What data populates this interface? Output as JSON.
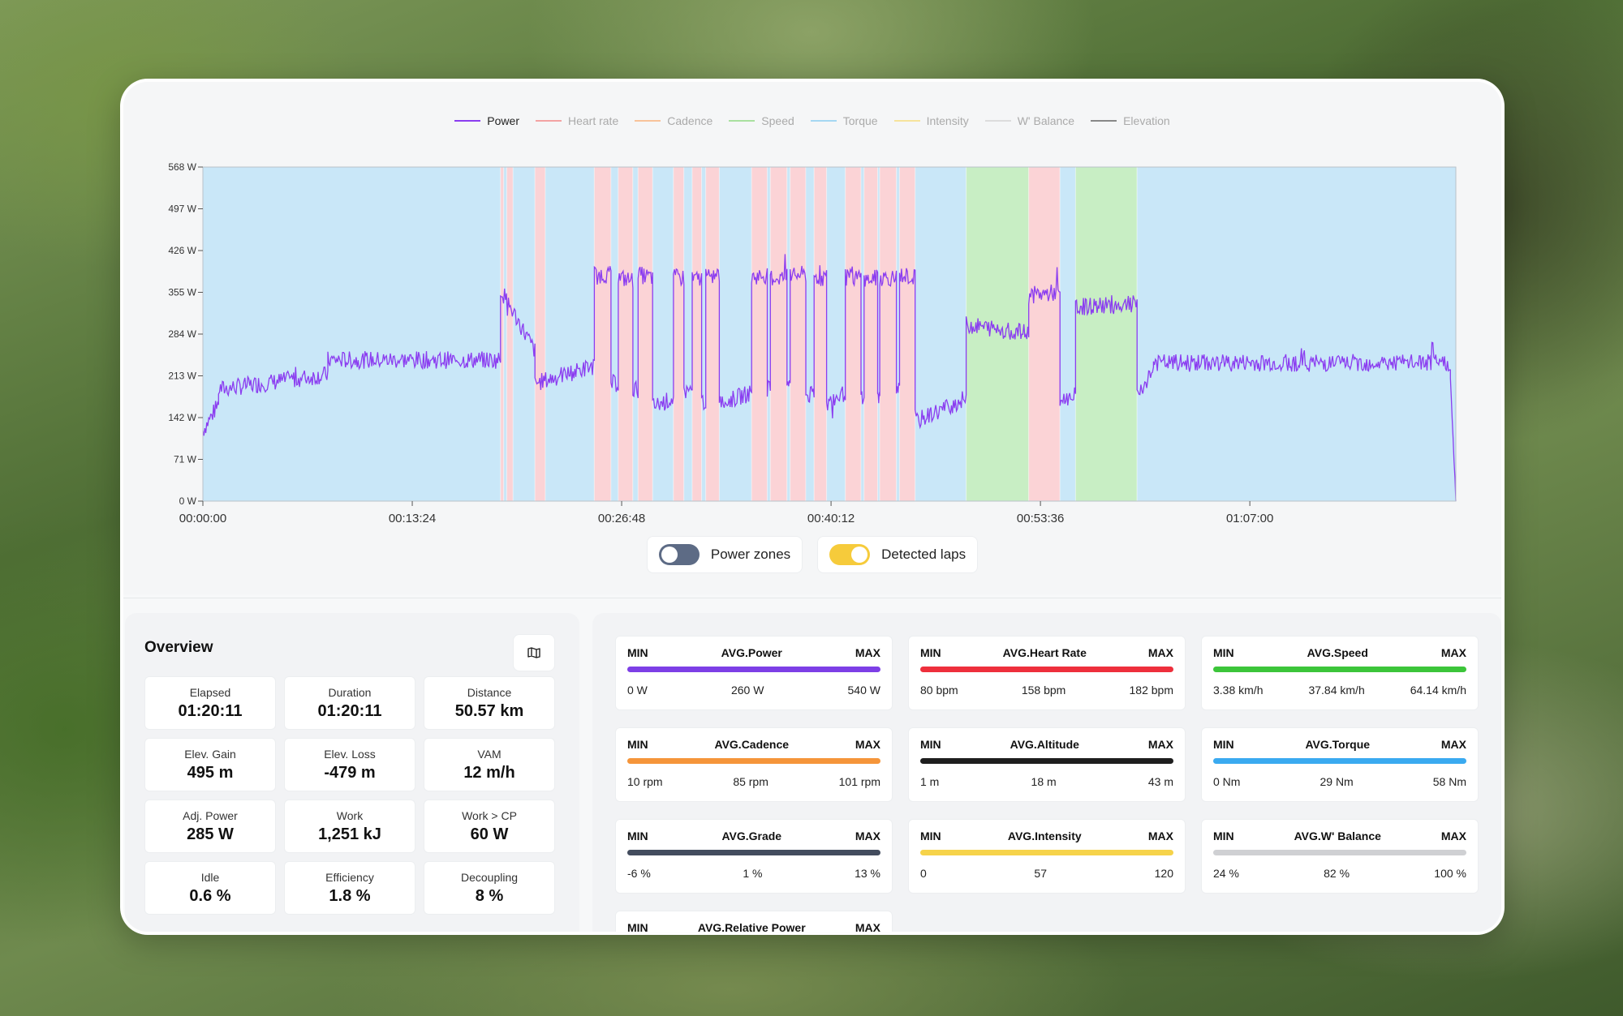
{
  "legend": [
    {
      "label": "Power",
      "color": "#8b3df0",
      "active": true
    },
    {
      "label": "Heart rate",
      "color": "#f3a3a3",
      "active": false
    },
    {
      "label": "Cadence",
      "color": "#f8c39a",
      "active": false
    },
    {
      "label": "Speed",
      "color": "#a9e09f",
      "active": false
    },
    {
      "label": "Torque",
      "color": "#a5d7f2",
      "active": false
    },
    {
      "label": "Intensity",
      "color": "#f6e39c",
      "active": false
    },
    {
      "label": "W' Balance",
      "color": "#dcdcdc",
      "active": false
    },
    {
      "label": "Elevation",
      "color": "#888888",
      "active": false
    }
  ],
  "chart_data": {
    "type": "line",
    "series": [
      {
        "name": "Power",
        "color": "#8b3df0"
      }
    ],
    "y_ticks": [
      "568 W",
      "497 W",
      "426 W",
      "355 W",
      "284 W",
      "213 W",
      "142 W",
      "71 W",
      "0 W"
    ],
    "x_ticks": [
      "00:00:00",
      "00:13:24",
      "00:26:48",
      "00:40:12",
      "00:53:36",
      "01:07:00"
    ],
    "ylim": [
      0,
      568
    ],
    "xlim_seconds": [
      0,
      4811
    ],
    "zones_legend": {
      "blue": "#c9e7f8",
      "pink": "#fbd3d6",
      "green": "#c8eec4"
    },
    "zones": [
      {
        "from": 0,
        "to": 1143,
        "color": "blue"
      },
      {
        "from": 1143,
        "to": 1155,
        "color": "pink"
      },
      {
        "from": 1155,
        "to": 1167,
        "color": "blue"
      },
      {
        "from": 1167,
        "to": 1191,
        "color": "pink"
      },
      {
        "from": 1191,
        "to": 1275,
        "color": "blue"
      },
      {
        "from": 1275,
        "to": 1315,
        "color": "pink"
      },
      {
        "from": 1315,
        "to": 1503,
        "color": "blue"
      },
      {
        "from": 1503,
        "to": 1567,
        "color": "pink"
      },
      {
        "from": 1567,
        "to": 1595,
        "color": "blue"
      },
      {
        "from": 1595,
        "to": 1651,
        "color": "pink"
      },
      {
        "from": 1651,
        "to": 1671,
        "color": "blue"
      },
      {
        "from": 1671,
        "to": 1727,
        "color": "pink"
      },
      {
        "from": 1727,
        "to": 1807,
        "color": "blue"
      },
      {
        "from": 1807,
        "to": 1847,
        "color": "pink"
      },
      {
        "from": 1847,
        "to": 1879,
        "color": "blue"
      },
      {
        "from": 1879,
        "to": 1915,
        "color": "pink"
      },
      {
        "from": 1915,
        "to": 1931,
        "color": "blue"
      },
      {
        "from": 1931,
        "to": 1983,
        "color": "pink"
      },
      {
        "from": 1983,
        "to": 2107,
        "color": "blue"
      },
      {
        "from": 2107,
        "to": 2167,
        "color": "pink"
      },
      {
        "from": 2167,
        "to": 2179,
        "color": "blue"
      },
      {
        "from": 2179,
        "to": 2243,
        "color": "pink"
      },
      {
        "from": 2243,
        "to": 2255,
        "color": "blue"
      },
      {
        "from": 2255,
        "to": 2315,
        "color": "pink"
      },
      {
        "from": 2315,
        "to": 2347,
        "color": "blue"
      },
      {
        "from": 2347,
        "to": 2395,
        "color": "pink"
      },
      {
        "from": 2395,
        "to": 2467,
        "color": "blue"
      },
      {
        "from": 2467,
        "to": 2527,
        "color": "pink"
      },
      {
        "from": 2527,
        "to": 2539,
        "color": "blue"
      },
      {
        "from": 2539,
        "to": 2591,
        "color": "pink"
      },
      {
        "from": 2591,
        "to": 2599,
        "color": "blue"
      },
      {
        "from": 2599,
        "to": 2663,
        "color": "pink"
      },
      {
        "from": 2663,
        "to": 2675,
        "color": "blue"
      },
      {
        "from": 2675,
        "to": 2735,
        "color": "pink"
      },
      {
        "from": 2735,
        "to": 2931,
        "color": "blue"
      },
      {
        "from": 2931,
        "to": 3171,
        "color": "green"
      },
      {
        "from": 3171,
        "to": 3291,
        "color": "pink"
      },
      {
        "from": 3291,
        "to": 3351,
        "color": "blue"
      },
      {
        "from": 3351,
        "to": 3587,
        "color": "green"
      },
      {
        "from": 3587,
        "to": 4811,
        "color": "blue"
      }
    ],
    "power_segments": [
      {
        "from": 0,
        "to": 60,
        "start": 120,
        "end": 165
      },
      {
        "from": 60,
        "to": 480,
        "start": 190,
        "end": 215
      },
      {
        "from": 480,
        "to": 1143,
        "start": 240,
        "end": 240
      },
      {
        "from": 1143,
        "to": 1275,
        "start": 360,
        "end": 255
      },
      {
        "from": 1275,
        "to": 1503,
        "start": 200,
        "end": 230
      },
      {
        "from": 1503,
        "to": 1567,
        "start": 385,
        "end": 385
      },
      {
        "from": 1567,
        "to": 1595,
        "start": 200,
        "end": 200
      },
      {
        "from": 1595,
        "to": 1651,
        "start": 380,
        "end": 375
      },
      {
        "from": 1651,
        "to": 1671,
        "start": 190,
        "end": 190
      },
      {
        "from": 1671,
        "to": 1727,
        "start": 385,
        "end": 380
      },
      {
        "from": 1727,
        "to": 1807,
        "start": 160,
        "end": 175
      },
      {
        "from": 1807,
        "to": 1847,
        "start": 380,
        "end": 380
      },
      {
        "from": 1847,
        "to": 1879,
        "start": 185,
        "end": 190
      },
      {
        "from": 1879,
        "to": 1915,
        "start": 375,
        "end": 380
      },
      {
        "from": 1915,
        "to": 1931,
        "start": 170,
        "end": 170
      },
      {
        "from": 1931,
        "to": 1983,
        "start": 380,
        "end": 385
      },
      {
        "from": 1983,
        "to": 2107,
        "start": 165,
        "end": 185
      },
      {
        "from": 2107,
        "to": 2167,
        "start": 380,
        "end": 385
      },
      {
        "from": 2167,
        "to": 2179,
        "start": 190,
        "end": 190
      },
      {
        "from": 2179,
        "to": 2243,
        "start": 380,
        "end": 380
      },
      {
        "from": 2243,
        "to": 2255,
        "start": 200,
        "end": 200
      },
      {
        "from": 2255,
        "to": 2315,
        "start": 385,
        "end": 385
      },
      {
        "from": 2315,
        "to": 2347,
        "start": 180,
        "end": 180
      },
      {
        "from": 2347,
        "to": 2395,
        "start": 380,
        "end": 380
      },
      {
        "from": 2395,
        "to": 2467,
        "start": 165,
        "end": 185
      },
      {
        "from": 2467,
        "to": 2527,
        "start": 380,
        "end": 380
      },
      {
        "from": 2527,
        "to": 2539,
        "start": 180,
        "end": 180
      },
      {
        "from": 2539,
        "to": 2591,
        "start": 375,
        "end": 380
      },
      {
        "from": 2591,
        "to": 2599,
        "start": 180,
        "end": 180
      },
      {
        "from": 2599,
        "to": 2663,
        "start": 380,
        "end": 380
      },
      {
        "from": 2663,
        "to": 2675,
        "start": 190,
        "end": 190
      },
      {
        "from": 2675,
        "to": 2735,
        "start": 385,
        "end": 380
      },
      {
        "from": 2735,
        "to": 2931,
        "start": 135,
        "end": 175
      },
      {
        "from": 2931,
        "to": 3171,
        "start": 300,
        "end": 285
      },
      {
        "from": 3171,
        "to": 3291,
        "start": 350,
        "end": 355
      },
      {
        "from": 3291,
        "to": 3351,
        "start": 170,
        "end": 180
      },
      {
        "from": 3351,
        "to": 3587,
        "start": 330,
        "end": 335
      },
      {
        "from": 3587,
        "to": 3650,
        "start": 180,
        "end": 225
      },
      {
        "from": 3650,
        "to": 4790,
        "start": 235,
        "end": 235
      },
      {
        "from": 4790,
        "to": 4811,
        "start": 200,
        "end": 0
      }
    ]
  },
  "toggles": {
    "power_zones": {
      "label": "Power zones",
      "on": false
    },
    "detected_laps": {
      "label": "Detected laps",
      "on": true
    }
  },
  "overview": {
    "title": "Overview",
    "map_icon": "map-icon",
    "cells": [
      {
        "label": "Elapsed",
        "value": "01:20:11"
      },
      {
        "label": "Duration",
        "value": "01:20:11"
      },
      {
        "label": "Distance",
        "value": "50.57 km"
      },
      {
        "label": "Elev. Gain",
        "value": "495 m"
      },
      {
        "label": "Elev. Loss",
        "value": "-479 m"
      },
      {
        "label": "VAM",
        "value": "12 m/h"
      },
      {
        "label": "Adj. Power",
        "value": "285 W"
      },
      {
        "label": "Work",
        "value": "1,251 kJ"
      },
      {
        "label": "Work > CP",
        "value": "60 W"
      },
      {
        "label": "Idle",
        "value": "0.6 %"
      },
      {
        "label": "Efficiency",
        "value": "1.8 %"
      },
      {
        "label": "Decoupling",
        "value": "8 %"
      }
    ]
  },
  "stats": [
    {
      "title": "AVG.Power",
      "min_label": "MIN",
      "max_label": "MAX",
      "min": "0 W",
      "avg": "260 W",
      "max": "540 W",
      "color": "#7d3fe6"
    },
    {
      "title": "AVG.Heart Rate",
      "min_label": "MIN",
      "max_label": "MAX",
      "min": "80 bpm",
      "avg": "158 bpm",
      "max": "182 bpm",
      "color": "#ee2f3c"
    },
    {
      "title": "AVG.Speed",
      "min_label": "MIN",
      "max_label": "MAX",
      "min": "3.38 km/h",
      "avg": "37.84 km/h",
      "max": "64.14 km/h",
      "color": "#3cc53a"
    },
    {
      "title": "AVG.Cadence",
      "min_label": "MIN",
      "max_label": "MAX",
      "min": "10 rpm",
      "avg": "85 rpm",
      "max": "101 rpm",
      "color": "#f5953a"
    },
    {
      "title": "AVG.Altitude",
      "min_label": "MIN",
      "max_label": "MAX",
      "min": "1 m",
      "avg": "18 m",
      "max": "43 m",
      "color": "#1e1e1e"
    },
    {
      "title": "AVG.Torque",
      "min_label": "MIN",
      "max_label": "MAX",
      "min": "0 Nm",
      "avg": "29 Nm",
      "max": "58 Nm",
      "color": "#3aaaf0"
    },
    {
      "title": "AVG.Grade",
      "min_label": "MIN",
      "max_label": "MAX",
      "min": "-6 %",
      "avg": "1 %",
      "max": "13 %",
      "color": "#434c5e"
    },
    {
      "title": "AVG.Intensity",
      "min_label": "MIN",
      "max_label": "MAX",
      "min": "0",
      "avg": "57",
      "max": "120",
      "color": "#f6d34a"
    },
    {
      "title": "AVG.W' Balance",
      "min_label": "MIN",
      "max_label": "MAX",
      "min": "24 %",
      "avg": "82 %",
      "max": "100 %",
      "color": "#cfd0d3"
    },
    {
      "title": "AVG.Relative Power",
      "min_label": "MIN",
      "max_label": "MAX",
      "min": "",
      "avg": "",
      "max": "",
      "color": "#7d3fe6"
    }
  ]
}
